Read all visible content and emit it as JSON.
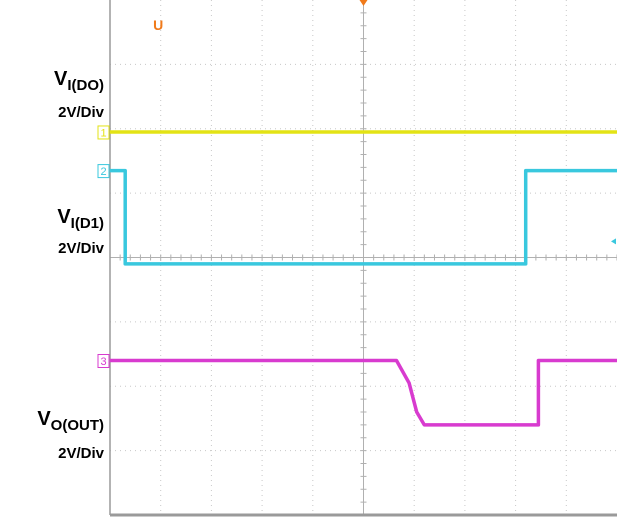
{
  "chart_data": {
    "type": "line",
    "title": "",
    "xlabel": "",
    "ylabel": "",
    "grid": true,
    "x_divisions": 10,
    "y_divisions": 8,
    "xlim": [
      0,
      10
    ],
    "ylim": [
      0,
      8
    ],
    "series": [
      {
        "name": "",
        "marker": "1",
        "color": "#e3e315",
        "points": [
          [
            0,
            5.95
          ],
          [
            10,
            5.95
          ]
        ]
      },
      {
        "name": "",
        "marker": "2",
        "color": "#39c8de",
        "points": [
          [
            0,
            5.35
          ],
          [
            0.3,
            5.35
          ],
          [
            0.3,
            3.9
          ],
          [
            8.2,
            3.9
          ],
          [
            8.2,
            5.35
          ],
          [
            10,
            5.35
          ]
        ]
      },
      {
        "name": "",
        "marker": "3",
        "color": "#d83bcf",
        "points": [
          [
            0,
            2.4
          ],
          [
            5.65,
            2.4
          ],
          [
            5.9,
            2.05
          ],
          [
            6.05,
            1.6
          ],
          [
            6.2,
            1.4
          ],
          [
            8.45,
            1.4
          ],
          [
            8.45,
            2.4
          ],
          [
            10,
            2.4
          ]
        ]
      }
    ],
    "trigger_marker": "U",
    "trigger_color": "#f07a1a"
  },
  "labels": {
    "ch1_signal": "V",
    "ch1_sub": "I(DO)",
    "ch1_scale": "2V/Div",
    "ch2_signal": "V",
    "ch2_sub": "I(D1)",
    "ch2_scale": "2V/Div",
    "ch3_signal": "V",
    "ch3_sub": "O(OUT)",
    "ch3_scale": "2V/Div"
  }
}
